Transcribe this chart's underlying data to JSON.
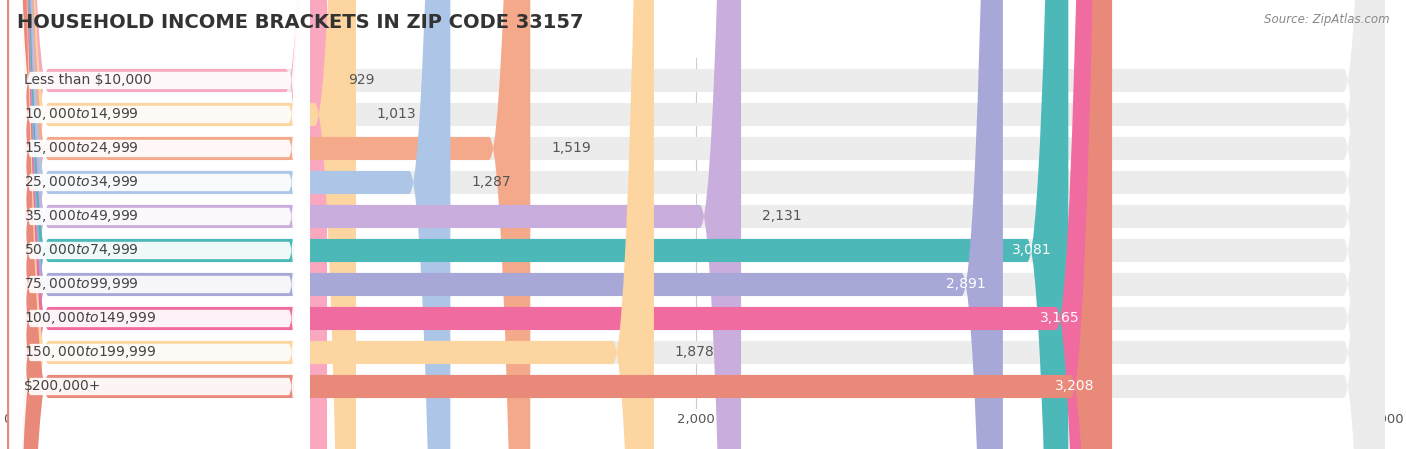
{
  "title": "HOUSEHOLD INCOME BRACKETS IN ZIP CODE 33157",
  "source": "Source: ZipAtlas.com",
  "categories": [
    "Less than $10,000",
    "$10,000 to $14,999",
    "$15,000 to $24,999",
    "$25,000 to $34,999",
    "$35,000 to $49,999",
    "$50,000 to $74,999",
    "$75,000 to $99,999",
    "$100,000 to $149,999",
    "$150,000 to $199,999",
    "$200,000+"
  ],
  "values": [
    929,
    1013,
    1519,
    1287,
    2131,
    3081,
    2891,
    3165,
    1878,
    3208
  ],
  "bar_colors": [
    "#f9a8c0",
    "#fdd5a0",
    "#f4a98a",
    "#adc6e8",
    "#c9aedd",
    "#4db8b8",
    "#a8a8d8",
    "#f06ba0",
    "#fdd5a0",
    "#e8897a"
  ],
  "xlim_max": 4000,
  "background_color": "#ffffff",
  "bar_bg_color": "#ececec",
  "title_fontsize": 14,
  "label_fontsize": 10,
  "value_fontsize": 10
}
